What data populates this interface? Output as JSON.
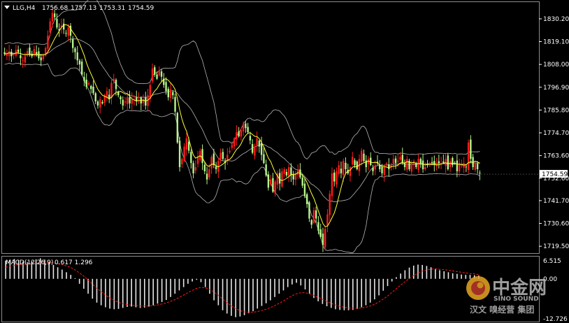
{
  "chart_data": [
    {
      "type": "candlestick",
      "symbol": "LLG,H4",
      "ohlc_header": [
        "1756.68",
        "1757.13",
        "1753.31",
        "1754.59"
      ],
      "y_ticks": [
        1830.2,
        1819.1,
        1808.0,
        1796.9,
        1785.8,
        1774.7,
        1763.6,
        1752.6,
        1741.7,
        1730.6,
        1719.5
      ],
      "y_tick_labels": [
        "1830.20",
        "1819.10",
        "1808.00",
        "1796.90",
        "1785.80",
        "1774.70",
        "1763.60",
        "1752.60",
        "1741.70",
        "1730.60",
        "1719.50"
      ],
      "ylim": [
        1716.5,
        1838.0
      ],
      "last_price": 1754.59,
      "last_price_label": "1754.59",
      "up_color": "#ff1a1a",
      "down_color": "#b4f48c",
      "overlays": {
        "ma_color": "#ffff33",
        "bollinger_color": "#b4b4b4"
      },
      "candles_close_path": [
        1813.0,
        1813.5,
        1814.5,
        1812.0,
        1813.2,
        1815.0,
        1814.0,
        1811.0,
        1810.0,
        1812.0,
        1814.5,
        1813.0,
        1812.0,
        1815.5,
        1813.0,
        1811.0,
        1810.0,
        1812.5,
        1816.0,
        1822.0,
        1829.0,
        1833.0,
        1831.0,
        1826.0,
        1824.5,
        1827.0,
        1825.0,
        1823.0,
        1826.0,
        1822.0,
        1816.0,
        1814.0,
        1810.0,
        1808.0,
        1803.0,
        1800.0,
        1797.0,
        1799.0,
        1796.0,
        1794.0,
        1790.0,
        1788.0,
        1791.0,
        1789.0,
        1793.0,
        1795.0,
        1791.0,
        1799.0,
        1801.0,
        1796.0,
        1793.0,
        1791.0,
        1788.0,
        1790.0,
        1792.0,
        1789.0,
        1791.0,
        1791.0,
        1790.0,
        1792.0,
        1789.0,
        1791.0,
        1788.0,
        1793.0,
        1798.0,
        1806.0,
        1803.0,
        1801.0,
        1805.0,
        1802.0,
        1798.0,
        1795.0,
        1792.0,
        1796.0,
        1793.0,
        1785.0,
        1770.0,
        1758.0,
        1762.0,
        1768.0,
        1772.0,
        1766.0,
        1760.0,
        1755.0,
        1758.0,
        1763.0,
        1766.0,
        1760.0,
        1756.0,
        1752.0,
        1757.0,
        1763.0,
        1759.0,
        1757.0,
        1761.0,
        1765.0,
        1762.0,
        1760.0,
        1764.0,
        1766.0,
        1769.0,
        1772.0,
        1775.0,
        1773.0,
        1776.0,
        1779.0,
        1777.0,
        1775.0,
        1771.0,
        1765.0,
        1768.0,
        1772.0,
        1768.0,
        1764.0,
        1760.0,
        1754.0,
        1748.0,
        1752.0,
        1746.0,
        1751.0,
        1755.0,
        1750.0,
        1756.0,
        1757.0,
        1754.0,
        1758.0,
        1754.0,
        1752.0,
        1755.0,
        1757.0,
        1753.0,
        1749.0,
        1744.0,
        1740.0,
        1733.0,
        1730.0,
        1737.0,
        1733.0,
        1727.0,
        1724.0,
        1720.0,
        1728.0,
        1735.0,
        1745.0,
        1755.0,
        1751.0,
        1756.0,
        1759.0,
        1755.0,
        1761.0,
        1757.0,
        1755.0,
        1758.0,
        1763.0,
        1759.0,
        1757.0,
        1762.0,
        1766.0,
        1761.0,
        1758.0,
        1762.0,
        1759.0,
        1756.0,
        1759.0,
        1760.0,
        1757.0,
        1755.0,
        1758.0,
        1760.0,
        1757.0,
        1759.0,
        1762.0,
        1760.0,
        1761.0,
        1763.0,
        1760.0,
        1758.0,
        1762.0,
        1757.0,
        1760.0,
        1761.0,
        1758.0,
        1762.0,
        1760.0,
        1757.0,
        1758.0,
        1759.0,
        1760.0,
        1760.0,
        1759.0,
        1760.0,
        1760.0,
        1760.0,
        1760.0,
        1762.0,
        1757.0,
        1761.0,
        1759.0,
        1760.0,
        1756.0,
        1760.0,
        1759.0,
        1760.0,
        1758.0,
        1770.0,
        1762.0,
        1758.0,
        1760.0,
        1757.0,
        1755.0
      ]
    },
    {
      "type": "histogram",
      "title": "MACD(12,26,9)",
      "title_values": "0.617 1.296",
      "y_tick_labels": [
        "6.515",
        "0.00",
        "-12.726"
      ],
      "ylim": [
        -12.726,
        6.515
      ],
      "histogram_color": "#e6e6e6",
      "signal_color": "#ff1a1a",
      "macd_path": [
        5.5,
        5.8,
        6.0,
        5.6,
        5.2,
        5.0,
        5.4,
        5.9,
        6.2,
        5.8,
        5.0,
        4.2,
        3.5,
        2.8,
        2.0,
        1.2,
        0.2,
        -1.5,
        -3.0,
        -4.5,
        -6.0,
        -7.2,
        -8.0,
        -8.6,
        -9.0,
        -9.2,
        -9.1,
        -8.8,
        -8.5,
        -8.4,
        -8.6,
        -8.8,
        -8.7,
        -8.4,
        -8.0,
        -7.5,
        -7.0,
        -6.4,
        -5.5,
        -4.5,
        -3.5,
        -2.5,
        -1.5,
        -0.8,
        -0.3,
        -1.0,
        -2.5,
        -4.5,
        -6.5,
        -8.0,
        -9.5,
        -10.5,
        -11.2,
        -11.6,
        -11.4,
        -11.0,
        -10.4,
        -9.8,
        -9.0,
        -8.2,
        -7.4,
        -6.5,
        -5.5,
        -4.5,
        -3.5,
        -2.5,
        -1.7,
        -1.2,
        -2.0,
        -3.2,
        -4.5,
        -5.8,
        -6.8,
        -7.6,
        -8.3,
        -8.8,
        -9.2,
        -9.4,
        -9.5,
        -9.5,
        -9.4,
        -9.1,
        -8.6,
        -8.0,
        -7.2,
        -6.2,
        -5.0,
        -3.6,
        -2.2,
        -0.8,
        0.5,
        1.6,
        2.6,
        3.4,
        4.0,
        4.3,
        4.2,
        3.9,
        3.5,
        3.0,
        2.6,
        2.3,
        2.0,
        1.7,
        1.5,
        1.3,
        1.2,
        1.2,
        1.1,
        1.0
      ],
      "signal_path": [
        3.5,
        3.8,
        4.1,
        4.3,
        4.4,
        4.5,
        4.6,
        4.7,
        4.8,
        4.9,
        4.9,
        4.8,
        4.6,
        4.3,
        3.9,
        3.4,
        2.7,
        1.8,
        0.8,
        -0.4,
        -1.6,
        -2.8,
        -3.9,
        -4.9,
        -5.8,
        -6.5,
        -7.1,
        -7.5,
        -7.8,
        -8.0,
        -8.1,
        -8.2,
        -8.2,
        -8.2,
        -8.1,
        -7.9,
        -7.6,
        -7.3,
        -6.8,
        -6.3,
        -5.6,
        -4.9,
        -4.2,
        -3.5,
        -2.9,
        -2.6,
        -2.7,
        -3.2,
        -4.0,
        -5.0,
        -6.1,
        -7.2,
        -8.2,
        -9.0,
        -9.6,
        -10.0,
        -10.1,
        -10.1,
        -9.9,
        -9.6,
        -9.2,
        -8.7,
        -8.1,
        -7.4,
        -6.7,
        -5.9,
        -5.1,
        -4.5,
        -4.2,
        -4.2,
        -4.5,
        -5.0,
        -5.6,
        -6.2,
        -6.8,
        -7.4,
        -7.9,
        -8.3,
        -8.6,
        -8.8,
        -8.9,
        -8.9,
        -8.8,
        -8.6,
        -8.2,
        -7.7,
        -7.0,
        -6.1,
        -5.2,
        -4.1,
        -3.0,
        -1.9,
        -0.9,
        0.1,
        1.0,
        1.7,
        2.3,
        2.7,
        2.9,
        3.0,
        2.9,
        2.8,
        2.6,
        2.4,
        2.2,
        2.0,
        1.8,
        1.6,
        1.5,
        1.3
      ]
    }
  ],
  "watermark": {
    "logo_text": "中金网",
    "sub_text": "SINO SOUND",
    "bottom_text": "汉文 嗅经营 集团"
  }
}
